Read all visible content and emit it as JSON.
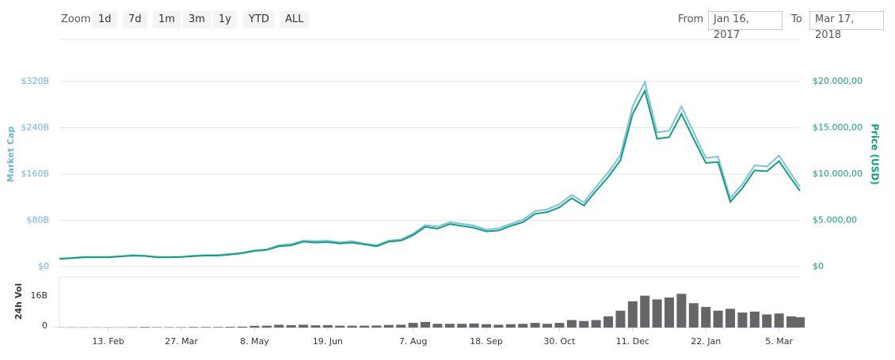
{
  "toolbar": {
    "zoom_label": "Zoom",
    "zoom_buttons": [
      "1d",
      "7d",
      "1m",
      "3m",
      "1y",
      "YTD",
      "ALL"
    ],
    "from_label": "From",
    "from_value": "Jan 16, 2017",
    "to_label": "To",
    "to_value": "Mar 17, 2018"
  },
  "chart_data": [
    {
      "type": "line",
      "ylabel": "Market Cap",
      "y2label": "Price (USD)",
      "grid": true,
      "x": [
        "2017-01-16",
        "2017-01-23",
        "2017-01-30",
        "2017-02-06",
        "2017-02-13",
        "2017-02-20",
        "2017-02-27",
        "2017-03-06",
        "2017-03-13",
        "2017-03-20",
        "2017-03-27",
        "2017-04-03",
        "2017-04-10",
        "2017-04-17",
        "2017-04-24",
        "2017-05-01",
        "2017-05-08",
        "2017-05-15",
        "2017-05-22",
        "2017-05-29",
        "2017-06-05",
        "2017-06-12",
        "2017-06-19",
        "2017-06-26",
        "2017-07-03",
        "2017-07-10",
        "2017-07-17",
        "2017-07-24",
        "2017-07-31",
        "2017-08-07",
        "2017-08-14",
        "2017-08-21",
        "2017-08-28",
        "2017-09-04",
        "2017-09-11",
        "2017-09-18",
        "2017-09-25",
        "2017-10-02",
        "2017-10-09",
        "2017-10-16",
        "2017-10-23",
        "2017-10-30",
        "2017-11-06",
        "2017-11-13",
        "2017-11-20",
        "2017-11-27",
        "2017-12-04",
        "2017-12-11",
        "2017-12-18",
        "2017-12-25",
        "2018-01-01",
        "2018-01-08",
        "2018-01-15",
        "2018-01-22",
        "2018-01-29",
        "2018-02-05",
        "2018-02-12",
        "2018-02-19",
        "2018-02-26",
        "2018-03-05",
        "2018-03-12",
        "2018-03-17"
      ],
      "series": [
        {
          "color": "#7cc0e8",
          "values": [
            14,
            15,
            17,
            17,
            17,
            18,
            20,
            19,
            17,
            17,
            17,
            19,
            20,
            20,
            22,
            24,
            28,
            30,
            37,
            39,
            45,
            44,
            45,
            42,
            44,
            40,
            37,
            45,
            47,
            57,
            72,
            69,
            77,
            74,
            71,
            64,
            66,
            74,
            81,
            96,
            99,
            108,
            124,
            111,
            138,
            163,
            193,
            277,
            319,
            232,
            235,
            277,
            232,
            188,
            190,
            118,
            143,
            175,
            173,
            192,
            160,
            138
          ]
        },
        {
          "color": "#12a07a",
          "axis": "y2",
          "values": [
            830,
            920,
            1000,
            1020,
            1000,
            1100,
            1190,
            1150,
            1000,
            1000,
            1040,
            1140,
            1200,
            1200,
            1300,
            1450,
            1700,
            1800,
            2200,
            2300,
            2700,
            2600,
            2650,
            2500,
            2600,
            2400,
            2200,
            2700,
            2800,
            3400,
            4300,
            4100,
            4600,
            4400,
            4200,
            3800,
            3900,
            4400,
            4800,
            5700,
            5900,
            6400,
            7400,
            6600,
            8200,
            9700,
            11500,
            16500,
            19000,
            13800,
            14000,
            16500,
            13800,
            11200,
            11300,
            7000,
            8500,
            10400,
            10300,
            11400,
            9500,
            8200
          ]
        }
      ],
      "xlim": [
        "2017-01-16",
        "2018-03-17"
      ],
      "ylim": [
        0,
        320
      ],
      "yticks": [
        {
          "value": 0,
          "label": "$0"
        },
        {
          "value": 80,
          "label": "$80B"
        },
        {
          "value": 160,
          "label": "$160B"
        },
        {
          "value": 240,
          "label": "$240B"
        },
        {
          "value": 320,
          "label": "$320B"
        }
      ],
      "y2lim": [
        0,
        20000
      ],
      "y2ticks": [
        {
          "value": 0,
          "label": "$0"
        },
        {
          "value": 5000,
          "label": "$5.000,00"
        },
        {
          "value": 10000,
          "label": "$10.000,00"
        },
        {
          "value": 15000,
          "label": "$15.000,00"
        },
        {
          "value": 20000,
          "label": "$20.000,00"
        }
      ]
    },
    {
      "type": "bar",
      "ylabel": "24h Vol",
      "color": "#666666",
      "x": [
        "2017-01-16",
        "2017-01-23",
        "2017-01-30",
        "2017-02-06",
        "2017-02-13",
        "2017-02-20",
        "2017-02-27",
        "2017-03-06",
        "2017-03-13",
        "2017-03-20",
        "2017-03-27",
        "2017-04-03",
        "2017-04-10",
        "2017-04-17",
        "2017-04-24",
        "2017-05-01",
        "2017-05-08",
        "2017-05-15",
        "2017-05-22",
        "2017-05-29",
        "2017-06-05",
        "2017-06-12",
        "2017-06-19",
        "2017-06-26",
        "2017-07-03",
        "2017-07-10",
        "2017-07-17",
        "2017-07-24",
        "2017-07-31",
        "2017-08-07",
        "2017-08-14",
        "2017-08-21",
        "2017-08-28",
        "2017-09-04",
        "2017-09-11",
        "2017-09-18",
        "2017-09-25",
        "2017-10-02",
        "2017-10-09",
        "2017-10-16",
        "2017-10-23",
        "2017-10-30",
        "2017-11-06",
        "2017-11-13",
        "2017-11-20",
        "2017-11-27",
        "2017-12-04",
        "2017-12-11",
        "2017-12-18",
        "2017-12-25",
        "2018-01-01",
        "2018-01-08",
        "2018-01-15",
        "2018-01-22",
        "2018-01-29",
        "2018-02-05",
        "2018-02-12",
        "2018-02-19",
        "2018-02-26",
        "2018-03-05",
        "2018-03-12",
        "2018-03-17"
      ],
      "values": [
        0.1,
        0.1,
        0.1,
        0.1,
        0.1,
        0.1,
        0.2,
        0.3,
        0.2,
        0.2,
        0.2,
        0.3,
        0.3,
        0.3,
        0.4,
        0.5,
        0.9,
        1.0,
        1.5,
        1.3,
        1.5,
        1.2,
        1.3,
        1.0,
        1.0,
        1.0,
        1.1,
        1.4,
        1.5,
        2.5,
        3.0,
        2.0,
        2.0,
        2.0,
        2.2,
        1.8,
        1.5,
        1.8,
        2.0,
        2.5,
        2.0,
        2.5,
        4.0,
        3.5,
        4.0,
        6.0,
        9.0,
        14.0,
        17.0,
        15.0,
        16.0,
        18.0,
        13.0,
        11.0,
        9.0,
        10.0,
        8.0,
        8.5,
        7.0,
        7.5,
        6.0,
        5.5
      ],
      "xlim": [
        "2017-01-16",
        "2018-03-17"
      ],
      "ylim": [
        0,
        27
      ],
      "yticks": [
        0,
        {
          "value": 16,
          "label": "16B"
        }
      ],
      "xticks": [
        {
          "value": "2017-02-13",
          "label": "13. Feb"
        },
        {
          "value": "2017-03-27",
          "label": "27. Mar"
        },
        {
          "value": "2017-05-08",
          "label": "8. May"
        },
        {
          "value": "2017-06-19",
          "label": "19. Jun"
        },
        {
          "value": "2017-08-07",
          "label": "7. Aug"
        },
        {
          "value": "2017-09-18",
          "label": "18. Sep"
        },
        {
          "value": "2017-10-30",
          "label": "30. Oct"
        },
        {
          "value": "2017-12-11",
          "label": "11. Dec"
        },
        {
          "value": "2018-01-22",
          "label": "22. Jan"
        },
        {
          "value": "2018-03-05",
          "label": "5. Mar"
        }
      ]
    }
  ]
}
